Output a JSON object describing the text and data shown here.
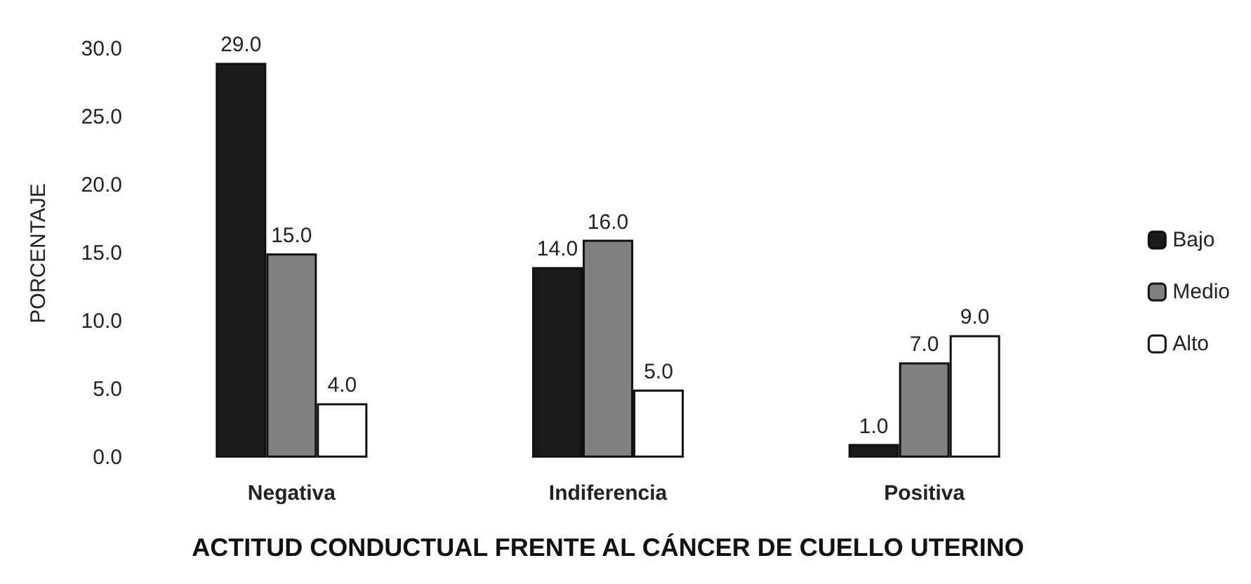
{
  "chart_data": {
    "type": "bar",
    "xlabel": "ACTITUD CONDUCTUAL FRENTE AL CÁNCER DE CUELLO UTERINO",
    "ylabel": "PORCENTAJE",
    "categories": [
      "Negativa",
      "Indiferencia",
      "Positiva"
    ],
    "series": [
      {
        "name": "Bajo",
        "color": "#1a1a1a",
        "values": [
          29,
          14,
          1
        ],
        "value_labels": [
          "29.0",
          "14.0",
          "1.0"
        ]
      },
      {
        "name": "Medio",
        "color": "#808080",
        "values": [
          15,
          16,
          7
        ],
        "value_labels": [
          "15.0",
          "16.0",
          "7.0"
        ]
      },
      {
        "name": "Alto",
        "color": "#ffffff",
        "values": [
          4,
          5,
          9
        ],
        "value_labels": [
          "4.0",
          "5.0",
          "9.0"
        ]
      }
    ],
    "ylim": [
      0,
      30
    ],
    "yticks": [
      {
        "value": 0,
        "label": "0.0"
      },
      {
        "value": 5,
        "label": "5.0"
      },
      {
        "value": 10,
        "label": "10.0"
      },
      {
        "value": 15,
        "label": "15.0"
      },
      {
        "value": 20,
        "label": "20.0"
      },
      {
        "value": 25,
        "label": "25.0"
      },
      {
        "value": 30,
        "label": "30.0"
      }
    ],
    "grid": false,
    "legend": "right"
  }
}
